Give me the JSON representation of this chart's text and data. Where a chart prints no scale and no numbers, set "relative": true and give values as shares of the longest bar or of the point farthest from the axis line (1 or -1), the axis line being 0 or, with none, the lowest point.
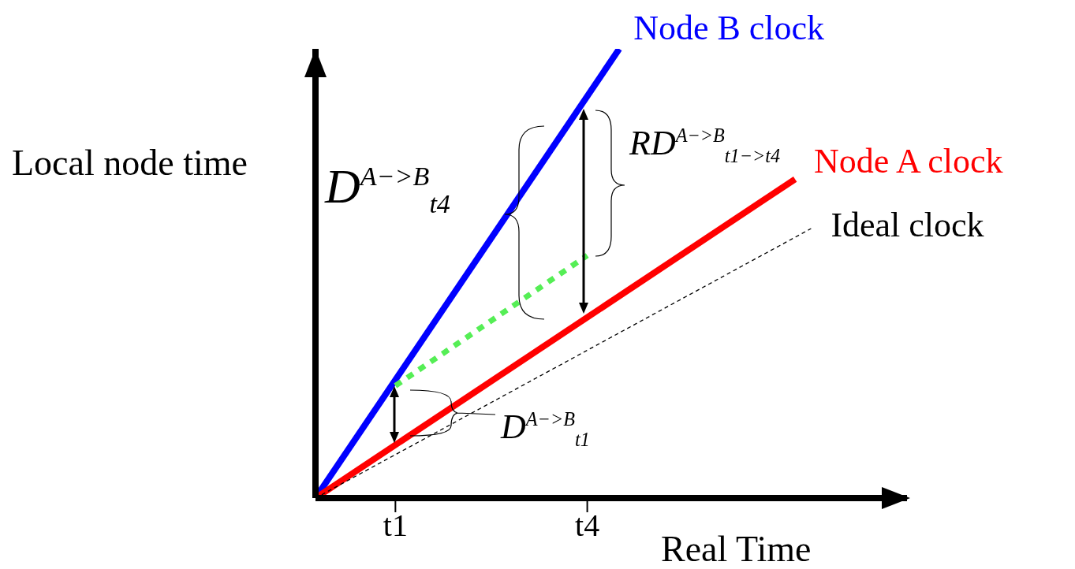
{
  "chart_data": {
    "type": "line",
    "relative": true,
    "xlabel": "Real Time",
    "ylabel": "Local node time",
    "categories": [
      null,
      null,
      null,
      null,
      null,
      "t1",
      null,
      null,
      null,
      null,
      null,
      null,
      null,
      null,
      null,
      null,
      null,
      "t4",
      null,
      null,
      null,
      null,
      null,
      null,
      null,
      null,
      null,
      null,
      null,
      null,
      null,
      null,
      null,
      null,
      null,
      null,
      null,
      null
    ],
    "series": [
      {
        "name": "Node B clock",
        "color": "#0000ff",
        "values": [
          0,
          null,
          null,
          null,
          null,
          null,
          null,
          null,
          null,
          null,
          null,
          null,
          null,
          null,
          null,
          null,
          null,
          null,
          null,
          1,
          null,
          null,
          null,
          null,
          null,
          null,
          null,
          null,
          null,
          null,
          null,
          null,
          null,
          null,
          null,
          null,
          null,
          null
        ],
        "line_style": "solid"
      },
      {
        "name": "Node A clock",
        "color": "#ff0000",
        "values": [
          0,
          null,
          null,
          null,
          null,
          null,
          null,
          null,
          null,
          null,
          null,
          null,
          null,
          null,
          null,
          null,
          null,
          null,
          null,
          null,
          null,
          null,
          null,
          null,
          null,
          null,
          null,
          null,
          null,
          null,
          0.71,
          null,
          null,
          null,
          null,
          null,
          null,
          null
        ],
        "line_style": "solid"
      },
      {
        "name": "Ideal clock",
        "color": "#000000",
        "values": [
          0,
          null,
          null,
          null,
          null,
          null,
          null,
          null,
          null,
          null,
          null,
          null,
          null,
          null,
          null,
          null,
          null,
          null,
          null,
          null,
          null,
          null,
          null,
          null,
          null,
          null,
          null,
          null,
          null,
          null,
          null,
          0.6,
          null,
          null,
          null,
          null,
          null,
          null
        ],
        "line_style": "dashed"
      },
      {
        "color": "#55ee55",
        "values": [
          null,
          null,
          null,
          null,
          null,
          0.25,
          null,
          null,
          null,
          null,
          null,
          null,
          null,
          null,
          null,
          null,
          null,
          0.54,
          null,
          null,
          null,
          null,
          null,
          null,
          null,
          null,
          null,
          null,
          null,
          null,
          null,
          null,
          null,
          null,
          null,
          null,
          null,
          null
        ],
        "line_style": "dotted"
      }
    ],
    "annotations": [
      "D$^{A−>B}$$_{t4}$",
      "RD$^{A−>B}$$_{t1−>t4}$",
      "D$^{A−>B}$$_{t1}$"
    ]
  }
}
